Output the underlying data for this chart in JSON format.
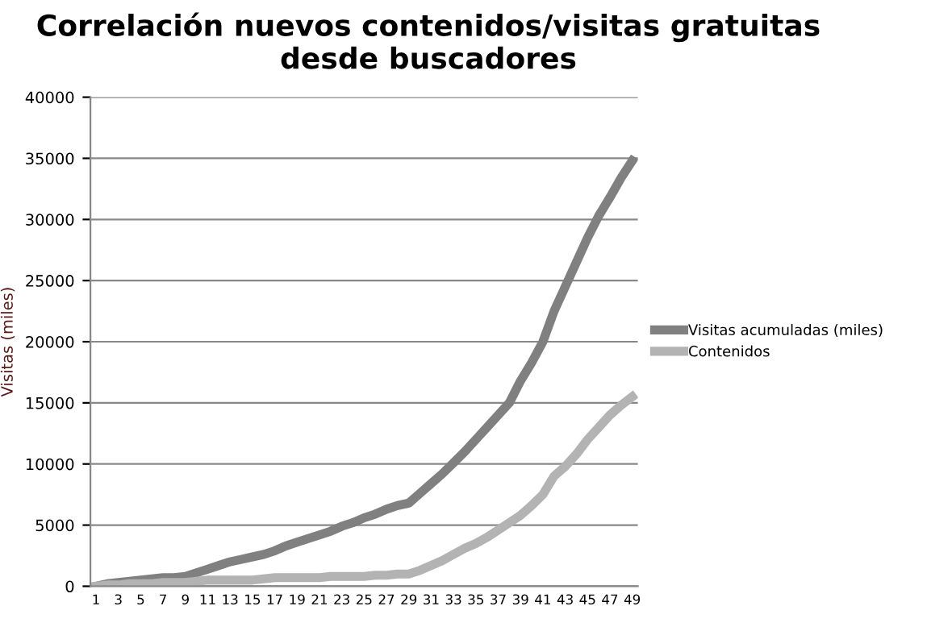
{
  "chart_data": {
    "type": "line",
    "title": "Correlación nuevos contenidos/visitas gratuitas desde buscadores",
    "ylabel": "Visitas (miles)",
    "categories": [
      "1",
      null,
      "3",
      null,
      "5",
      null,
      "7",
      null,
      "9",
      null,
      "11",
      null,
      "13",
      null,
      "15",
      null,
      "17",
      null,
      "19",
      null,
      "21",
      null,
      "23",
      null,
      "25",
      null,
      "27",
      null,
      "29",
      null,
      "31",
      null,
      "33",
      null,
      "35",
      null,
      "37",
      null,
      "39",
      null,
      "41",
      null,
      "43",
      null,
      "45",
      null,
      "47",
      null,
      "49"
    ],
    "series": [
      {
        "name": "Visitas acumuladas (miles)",
        "color": "#808080",
        "values": [
          0,
          200,
          300,
          400,
          500,
          600,
          700,
          700,
          800,
          1100,
          1400,
          1700,
          2000,
          2200,
          2400,
          2600,
          2900,
          3300,
          3600,
          3900,
          4200,
          4500,
          4900,
          5200,
          5600,
          5900,
          6300,
          6600,
          6800,
          7600,
          8400,
          9200,
          10100,
          11000,
          12000,
          13000,
          14000,
          15000,
          16800,
          18300,
          20000,
          22500,
          24500,
          26500,
          28500,
          30300,
          31800,
          33400,
          34800
        ]
      },
      {
        "name": "Contenidos",
        "color": "#b3b3b3",
        "values": [
          0,
          100,
          100,
          200,
          200,
          200,
          300,
          300,
          300,
          400,
          500,
          500,
          500,
          500,
          500,
          600,
          700,
          700,
          700,
          700,
          700,
          800,
          800,
          800,
          800,
          900,
          900,
          1000,
          1000,
          1300,
          1700,
          2100,
          2600,
          3100,
          3500,
          4000,
          4600,
          5200,
          5800,
          6600,
          7500,
          9000,
          9800,
          10800,
          12000,
          13000,
          14000,
          14800,
          15500
        ]
      }
    ],
    "ylim": [
      0,
      40000
    ],
    "yticks": [
      0,
      5000,
      10000,
      15000,
      20000,
      25000,
      30000,
      35000,
      40000
    ],
    "grid": "y",
    "legend": "right",
    "marker": "none",
    "line_style": "solid"
  }
}
